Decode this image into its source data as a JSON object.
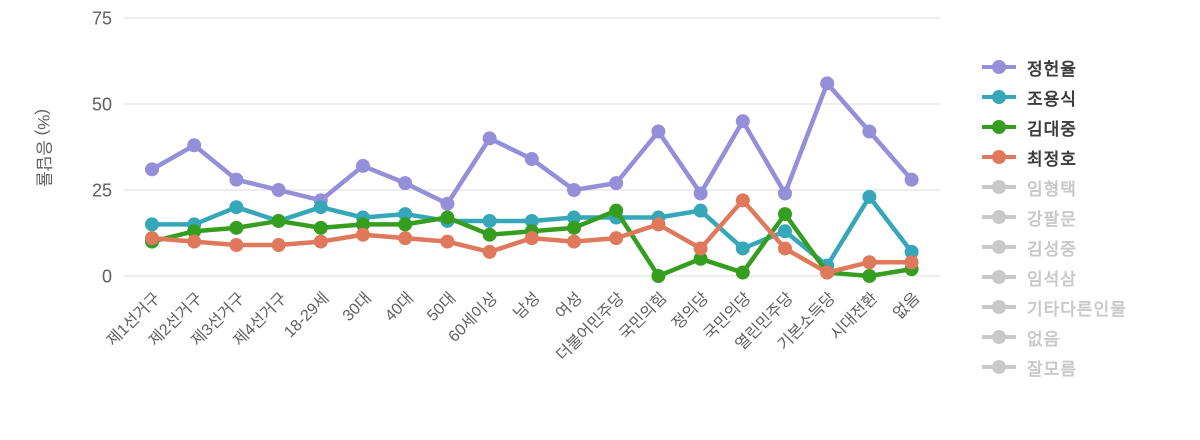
{
  "chart_data": {
    "type": "line",
    "title": "",
    "xlabel": "",
    "ylabel": "(%) 응답률",
    "yticks": [
      0,
      25,
      50,
      75
    ],
    "ylim": [
      0,
      75
    ],
    "grid": true,
    "legend_position": "right",
    "inactive_color": "#c9c9c9",
    "categories": [
      "제1선거구",
      "제2선거구",
      "제3선거구",
      "제4선거구",
      "18-29세",
      "30대",
      "40대",
      "50대",
      "60세이상",
      "남성",
      "여성",
      "더불어민주당",
      "국민의힘",
      "정의당",
      "국민의당",
      "열린민주당",
      "기본소득당",
      "시대전환",
      "없음"
    ],
    "series": [
      {
        "name": "정헌율",
        "color": "#958fd9",
        "visible": true,
        "values": [
          31,
          38,
          28,
          25,
          22,
          32,
          27,
          21,
          40,
          34,
          25,
          27,
          42,
          24,
          45,
          24,
          56,
          42,
          28
        ]
      },
      {
        "name": "조용식",
        "color": "#35a7b9",
        "visible": true,
        "values": [
          15,
          15,
          20,
          16,
          20,
          17,
          18,
          16,
          16,
          16,
          17,
          17,
          17,
          19,
          8,
          13,
          3,
          23,
          7
        ]
      },
      {
        "name": "김대중",
        "color": "#369e1e",
        "visible": true,
        "values": [
          10,
          13,
          14,
          16,
          14,
          15,
          15,
          17,
          12,
          13,
          14,
          19,
          0,
          5,
          1,
          18,
          1,
          0,
          2
        ]
      },
      {
        "name": "최정호",
        "color": "#e0795c",
        "visible": true,
        "values": [
          11,
          10,
          9,
          9,
          10,
          12,
          11,
          10,
          7,
          11,
          10,
          11,
          15,
          8,
          22,
          8,
          1,
          4,
          4
        ]
      },
      {
        "name": "임형택",
        "color": "#c9c9c9",
        "visible": false,
        "values": []
      },
      {
        "name": "강팔문",
        "color": "#c9c9c9",
        "visible": false,
        "values": []
      },
      {
        "name": "김성중",
        "color": "#c9c9c9",
        "visible": false,
        "values": []
      },
      {
        "name": "임석삼",
        "color": "#c9c9c9",
        "visible": false,
        "values": []
      },
      {
        "name": "기타다른인물",
        "color": "#c9c9c9",
        "visible": false,
        "values": []
      },
      {
        "name": "없음",
        "color": "#c9c9c9",
        "visible": false,
        "values": []
      },
      {
        "name": "잘모름",
        "color": "#c9c9c9",
        "visible": false,
        "values": []
      }
    ],
    "axis_text_color": "#606060",
    "gridline_color": "#e7e7e7"
  }
}
